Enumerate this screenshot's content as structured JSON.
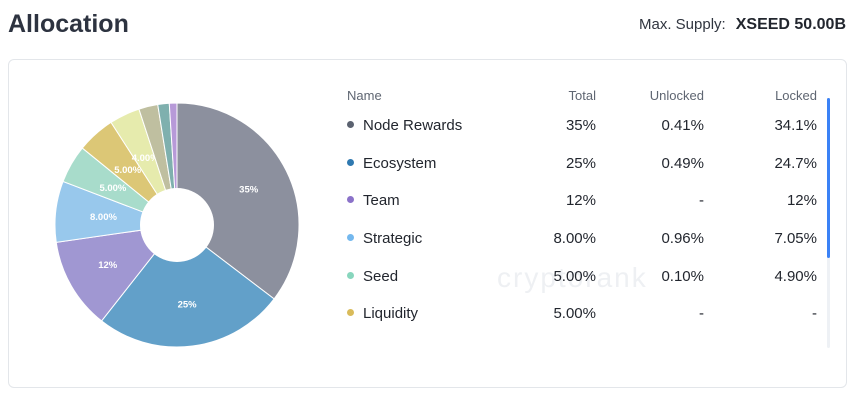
{
  "header": {
    "title": "Allocation",
    "max_supply_label": "Max. Supply:",
    "max_supply_value": "XSEED 50.00B"
  },
  "watermark": "cryptorank",
  "table": {
    "columns": [
      "Name",
      "Total",
      "Unlocked",
      "Locked"
    ],
    "rows": [
      {
        "name": "Node Rewards",
        "total": "35%",
        "unlocked": "0.41%",
        "locked": "34.1%",
        "color": "#5b6270"
      },
      {
        "name": "Ecosystem",
        "total": "25%",
        "unlocked": "0.49%",
        "locked": "24.7%",
        "color": "#2f79b0"
      },
      {
        "name": "Team",
        "total": "12%",
        "unlocked": "-",
        "locked": "12%",
        "color": "#8b72c9"
      },
      {
        "name": "Strategic",
        "total": "8.00%",
        "unlocked": "0.96%",
        "locked": "7.05%",
        "color": "#74b8ee"
      },
      {
        "name": "Seed",
        "total": "5.00%",
        "unlocked": "0.10%",
        "locked": "4.90%",
        "color": "#88d6bd"
      },
      {
        "name": "Liquidity",
        "total": "5.00%",
        "unlocked": "-",
        "locked": "-",
        "color": "#d9bb5a"
      }
    ]
  },
  "chart_data": {
    "type": "pie",
    "slices": [
      {
        "value": 35,
        "label": "35%",
        "color": "#8c909e"
      },
      {
        "value": 25,
        "label": "25%",
        "color": "#62a0c9"
      },
      {
        "value": 12,
        "label": "12%",
        "color": "#a097d2"
      },
      {
        "value": 8,
        "label": "8.00%",
        "color": "#98c8ec"
      },
      {
        "value": 5,
        "label": "5.00%",
        "color": "#a8dccb"
      },
      {
        "value": 5,
        "label": "5.00%",
        "color": "#dcc776"
      },
      {
        "value": 4,
        "label": "4.00%",
        "color": "#e6ebad"
      },
      {
        "value": 2.5,
        "label": "",
        "color": "#bfbfa0"
      },
      {
        "value": 1.5,
        "label": "",
        "color": "#7fb0ae"
      },
      {
        "value": 1,
        "label": "",
        "color": "#b79ad8"
      }
    ]
  }
}
